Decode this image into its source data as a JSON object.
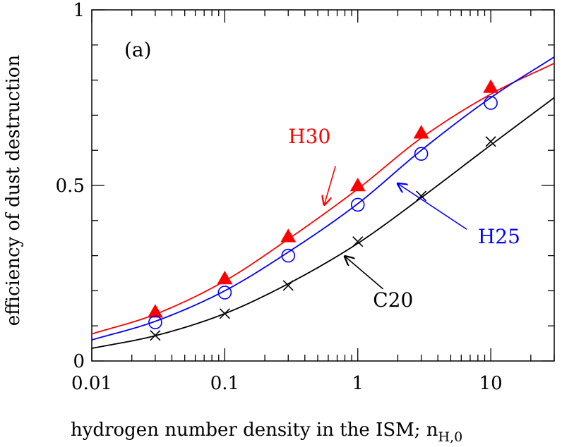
{
  "chart_data": {
    "type": "scatter",
    "panel_label": "(a)",
    "xlabel_main": "hydrogen number density in the ISM; n",
    "xlabel_sub": "H,0",
    "ylabel": "efficiency of dust destruction",
    "xscale": "log",
    "xlim": [
      0.01,
      30
    ],
    "ylim": [
      0,
      1
    ],
    "x_ticks": [
      {
        "value": 0.01,
        "label": "0.01"
      },
      {
        "value": 0.1,
        "label": "0.1"
      },
      {
        "value": 1,
        "label": "1"
      },
      {
        "value": 10,
        "label": "10"
      }
    ],
    "y_ticks": [
      {
        "value": 0,
        "label": "0"
      },
      {
        "value": 0.5,
        "label": "0.5"
      },
      {
        "value": 1,
        "label": "1"
      }
    ],
    "series": [
      {
        "name": "H30",
        "color": "#ff0000",
        "marker": "filled-triangle",
        "points": [
          [
            0.03,
            0.14
          ],
          [
            0.1,
            0.235
          ],
          [
            0.3,
            0.355
          ],
          [
            1,
            0.5
          ],
          [
            3,
            0.65
          ],
          [
            10,
            0.78
          ]
        ],
        "curve": [
          [
            0.01,
            0.077
          ],
          [
            0.03,
            0.133
          ],
          [
            0.1,
            0.228
          ],
          [
            0.3,
            0.347
          ],
          [
            1,
            0.49
          ],
          [
            3,
            0.635
          ],
          [
            10,
            0.76
          ],
          [
            30,
            0.848
          ]
        ],
        "label_pos": [
          0.3,
          0.62
        ],
        "arrow_from": [
          0.68,
          0.555
        ],
        "arrow_to": [
          0.56,
          0.445
        ]
      },
      {
        "name": "H25",
        "color": "#0000ff",
        "marker": "open-circle",
        "points": [
          [
            0.03,
            0.11
          ],
          [
            0.1,
            0.195
          ],
          [
            0.3,
            0.3
          ],
          [
            1,
            0.445
          ],
          [
            3,
            0.59
          ],
          [
            10,
            0.735
          ]
        ],
        "curve": [
          [
            0.01,
            0.06
          ],
          [
            0.03,
            0.113
          ],
          [
            0.1,
            0.2
          ],
          [
            0.3,
            0.31
          ],
          [
            1,
            0.448
          ],
          [
            3,
            0.6
          ],
          [
            10,
            0.75
          ],
          [
            30,
            0.866
          ]
        ],
        "label_pos": [
          8.0,
          0.335
        ],
        "arrow_from": [
          6.6,
          0.375
        ],
        "arrow_to": [
          2.0,
          0.505
        ]
      },
      {
        "name": "C20",
        "color": "#000000",
        "marker": "cross",
        "points": [
          [
            0.03,
            0.073
          ],
          [
            0.1,
            0.135
          ],
          [
            0.3,
            0.215
          ],
          [
            1,
            0.34
          ],
          [
            3,
            0.47
          ],
          [
            10,
            0.625
          ]
        ],
        "curve": [
          [
            0.01,
            0.036
          ],
          [
            0.03,
            0.072
          ],
          [
            0.1,
            0.135
          ],
          [
            0.3,
            0.22
          ],
          [
            1,
            0.335
          ],
          [
            3,
            0.465
          ],
          [
            10,
            0.615
          ],
          [
            30,
            0.75
          ]
        ],
        "label_pos": [
          1.3,
          0.155
        ],
        "arrow_from": [
          1.55,
          0.205
        ],
        "arrow_to": [
          0.8,
          0.298
        ]
      }
    ]
  }
}
